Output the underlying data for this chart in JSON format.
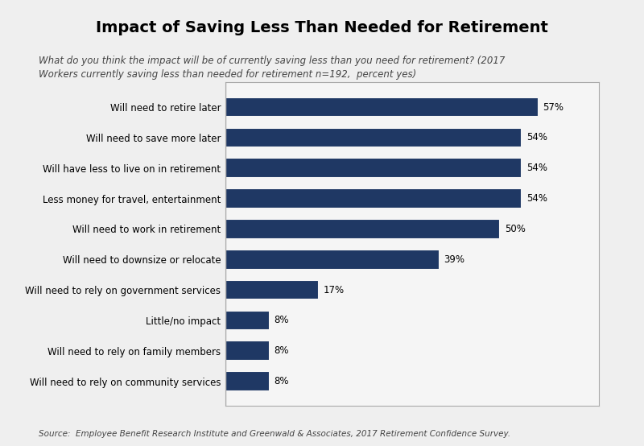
{
  "title": "Impact of Saving Less Than Needed for Retirement",
  "subtitle_line1": "What do you think the impact will be of currently saving less than you need for retirement? (2017",
  "subtitle_line2": "Workers currently saving less than needed for retirement n=192,  percent yes)",
  "source": "Source:  Employee Benefit Research Institute and Greenwald & Associates, 2017 Retirement Confidence Survey.",
  "categories": [
    "Will need to retire later",
    "Will need to save more later",
    "Will have less to live on in retirement",
    "Less money for travel, entertainment",
    "Will need to work in retirement",
    "Will need to downsize or relocate",
    "Will need to rely on government services",
    "Little/no impact",
    "Will need to rely on family members",
    "Will need to rely on community services"
  ],
  "values": [
    57,
    54,
    54,
    54,
    50,
    39,
    17,
    8,
    8,
    8
  ],
  "bar_color": "#1F3864",
  "fig_bg_color": "#EFEFEF",
  "chart_bg_color": "#F5F5F5",
  "title_fontsize": 14,
  "subtitle_fontsize": 8.5,
  "label_fontsize": 8.5,
  "value_fontsize": 8.5,
  "source_fontsize": 7.5,
  "xlim": [
    0,
    68
  ]
}
